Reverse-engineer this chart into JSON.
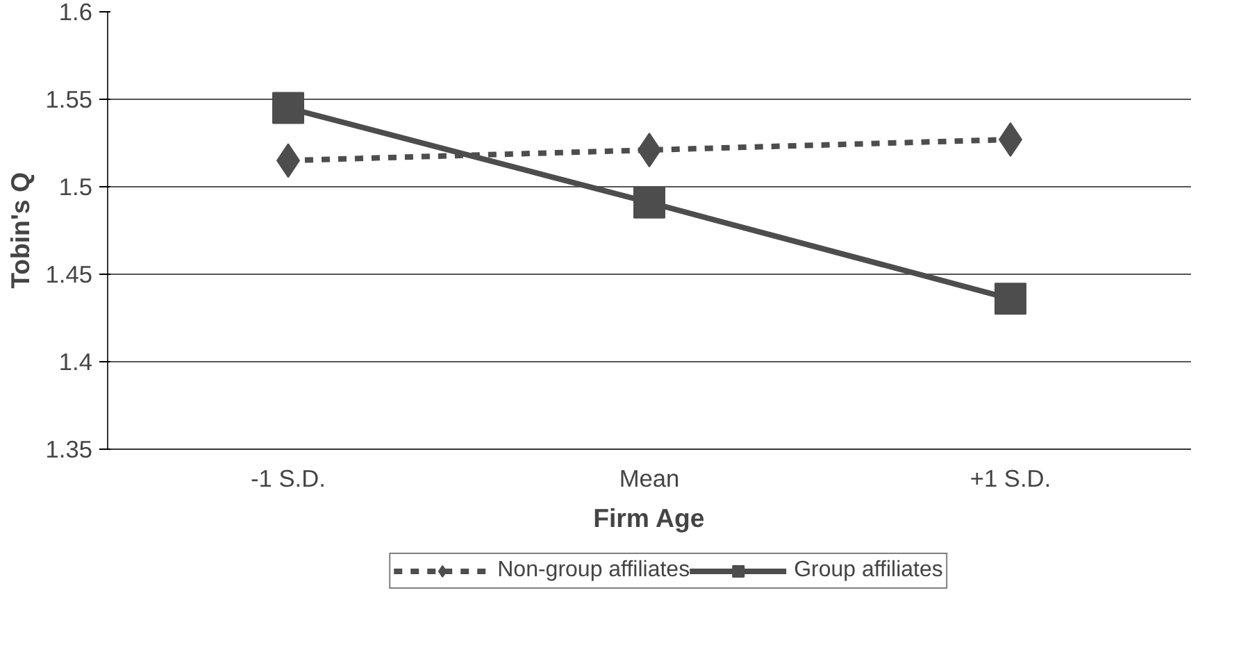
{
  "chart_data": {
    "type": "line",
    "xlabel": "Firm Age",
    "ylabel": "Tobin's Q",
    "categories": [
      "-1 S.D.",
      "Mean",
      "+1 S.D."
    ],
    "series": [
      {
        "name": "Non-group affiliates",
        "color": "#4d4d4d",
        "values": [
          1.515,
          1.521,
          1.527
        ],
        "marker": "diamond",
        "line_style": "dashed"
      },
      {
        "name": "Group affiliates",
        "color": "#4d4d4d",
        "values": [
          1.545,
          1.491,
          1.436
        ],
        "marker": "square",
        "line_style": "solid"
      }
    ],
    "ylim": [
      1.35,
      1.6
    ],
    "yticks": [
      1.35,
      1.4,
      1.45,
      1.5,
      1.55,
      1.6
    ],
    "grid": "y",
    "legend": "bottom"
  }
}
